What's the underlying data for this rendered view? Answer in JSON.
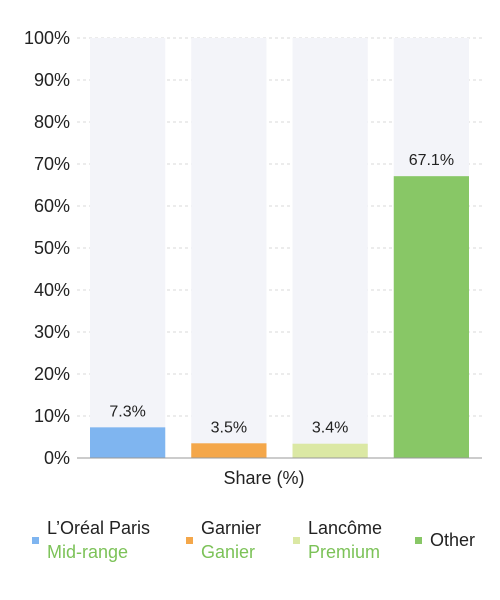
{
  "chart_data": {
    "type": "bar",
    "categories": [
      "L’Oréal Paris",
      "Garnier",
      "Lancôme",
      "Other"
    ],
    "subcategories": [
      "Mid-range",
      "Ganier",
      "Premium",
      ""
    ],
    "values": [
      7.3,
      3.5,
      3.4,
      67.1
    ],
    "value_labels": [
      "7.3%",
      "3.5%",
      "3.4%",
      "67.1%"
    ],
    "colors": [
      "#7fb5f0",
      "#f4a74a",
      "#dbe8a4",
      "#88c766"
    ],
    "title": "",
    "xlabel": "Share (%)",
    "ylabel": "",
    "ylim": [
      0,
      100
    ],
    "yticks": [
      "0%",
      "10%",
      "20%",
      "30%",
      "40%",
      "50%",
      "60%",
      "70%",
      "80%",
      "90%",
      "100%"
    ],
    "grid": true,
    "legend_position": "bottom"
  }
}
